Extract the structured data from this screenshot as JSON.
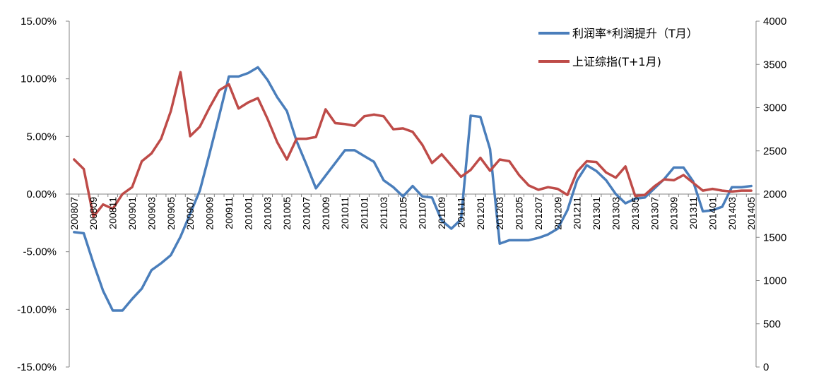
{
  "chart_data": {
    "type": "line",
    "title": "",
    "xlabel": "",
    "ylabel_left": "",
    "ylabel_right": "",
    "left_axis": {
      "ylim": [
        -0.15,
        0.15
      ],
      "ticks": [
        0.15,
        0.1,
        0.05,
        0.0,
        -0.05,
        -0.1,
        -0.15
      ],
      "tick_labels": [
        "15.00%",
        "10.00%",
        "5.00%",
        "0.00%",
        "-5.00%",
        "-10.00%",
        "-15.00%"
      ]
    },
    "right_axis": {
      "ylim": [
        0,
        4000
      ],
      "ticks": [
        4000,
        3500,
        3000,
        2500,
        2000,
        1500,
        1000,
        500,
        0
      ],
      "tick_labels": [
        "4000",
        "3500",
        "3000",
        "2500",
        "2000",
        "1500",
        "1000",
        "500",
        "0"
      ]
    },
    "grid": false,
    "legend_position": "top-right",
    "x_categories": [
      "200807",
      "200808",
      "200809",
      "200810",
      "200811",
      "200812",
      "200901",
      "200902",
      "200903",
      "200904",
      "200905",
      "200906",
      "200907",
      "200908",
      "200909",
      "200910",
      "200911",
      "200912",
      "201001",
      "201002",
      "201003",
      "201004",
      "201005",
      "201006",
      "201007",
      "201008",
      "201009",
      "201010",
      "201011",
      "201012",
      "201101",
      "201102",
      "201103",
      "201104",
      "201105",
      "201106",
      "201107",
      "201108",
      "201109",
      "201110",
      "201111",
      "201112",
      "201201",
      "201202",
      "201203",
      "201204",
      "201205",
      "201206",
      "201207",
      "201208",
      "201209",
      "201210",
      "201211",
      "201212",
      "201301",
      "201302",
      "201303",
      "201304",
      "201305",
      "201306",
      "201307",
      "201308",
      "201309",
      "201310",
      "201311",
      "201312",
      "201401",
      "201402",
      "201403",
      "201404",
      "201405"
    ],
    "x_tick_labels": [
      "200807",
      "200809",
      "200811",
      "200901",
      "200903",
      "200905",
      "200907",
      "200909",
      "200911",
      "201001",
      "201003",
      "201005",
      "201007",
      "201009",
      "201011",
      "201101",
      "201103",
      "201105",
      "201107",
      "201109",
      "201111",
      "201201",
      "201203",
      "201205",
      "201207",
      "201209",
      "201211",
      "201301",
      "201303",
      "201305",
      "201307",
      "201309",
      "201311",
      "201401",
      "201403",
      "201405"
    ],
    "series": [
      {
        "name": "利润率*利润提升（T月）",
        "axis": "left",
        "color": "#4a7ebb",
        "values": [
          -0.033,
          -0.034,
          -0.06,
          -0.084,
          -0.101,
          -0.101,
          -0.091,
          -0.082,
          -0.066,
          -0.06,
          -0.053,
          -0.037,
          -0.017,
          0.003,
          0.035,
          0.068,
          0.102,
          0.102,
          0.105,
          0.11,
          0.099,
          0.084,
          0.072,
          0.046,
          0.026,
          0.005,
          0.016,
          0.027,
          0.038,
          0.038,
          0.033,
          0.028,
          0.012,
          0.006,
          -0.002,
          0.007,
          -0.002,
          -0.003,
          -0.023,
          -0.03,
          -0.022,
          0.068,
          0.067,
          0.039,
          -0.043,
          -0.04,
          -0.04,
          -0.04,
          -0.038,
          -0.035,
          -0.03,
          -0.014,
          0.012,
          0.025,
          0.02,
          0.012,
          0.0,
          -0.008,
          -0.004,
          -0.003,
          0.005,
          0.013,
          0.023,
          0.023,
          0.011,
          -0.015,
          -0.014,
          -0.011,
          0.006,
          0.006,
          0.007
        ]
      },
      {
        "name": "上证综指(T+1月)",
        "axis": "right",
        "color": "#be4b48",
        "values": [
          2400,
          2290,
          1740,
          1880,
          1830,
          2000,
          2080,
          2380,
          2470,
          2640,
          2960,
          3410,
          2670,
          2780,
          3000,
          3200,
          3270,
          2990,
          3060,
          3110,
          2870,
          2600,
          2400,
          2640,
          2640,
          2660,
          2980,
          2820,
          2810,
          2790,
          2900,
          2920,
          2900,
          2750,
          2760,
          2720,
          2570,
          2360,
          2460,
          2330,
          2200,
          2280,
          2420,
          2270,
          2400,
          2380,
          2220,
          2100,
          2050,
          2080,
          2060,
          1990,
          2260,
          2380,
          2370,
          2250,
          2190,
          2320,
          1980,
          1990,
          2090,
          2170,
          2160,
          2220,
          2130,
          2040,
          2060,
          2040,
          2030,
          2040,
          2040
        ]
      }
    ]
  }
}
